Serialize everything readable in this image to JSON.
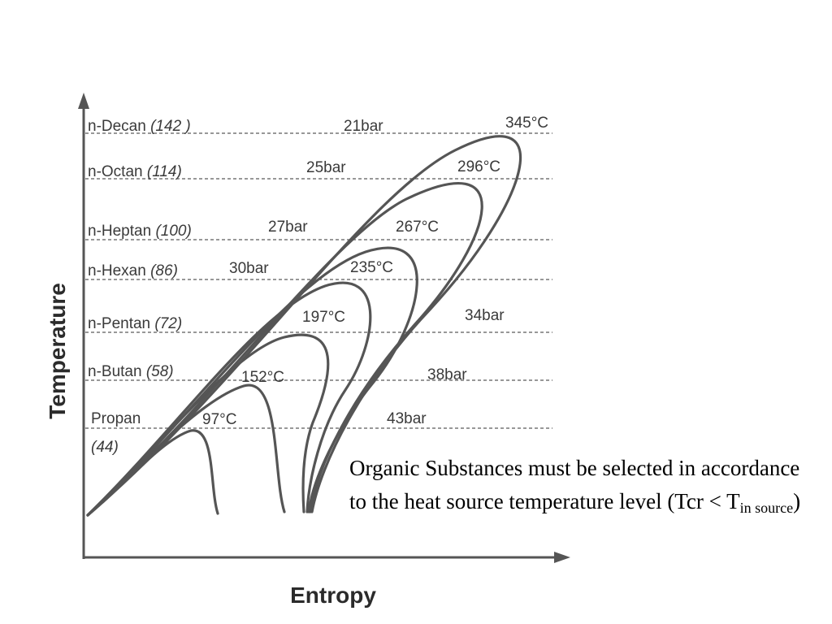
{
  "axes": {
    "y_title": "Temperature",
    "x_title": "Entropy"
  },
  "substances": [
    {
      "name": "n-Decan",
      "mol": "(142 )",
      "pressure": "21bar",
      "tcrit": "345°C"
    },
    {
      "name": "n-Octan",
      "mol": "(114)",
      "pressure": "25bar",
      "tcrit": "296°C"
    },
    {
      "name": "n-Heptan",
      "mol": "(100)",
      "pressure": "27bar",
      "tcrit": "267°C"
    },
    {
      "name": "n-Hexan",
      "mol": "(86)",
      "pressure": "30bar",
      "tcrit": "235°C"
    },
    {
      "name": "n-Pentan",
      "mol": "(72)",
      "pressure": "34bar",
      "tcrit": "197°C"
    },
    {
      "name": "n-Butan",
      "mol": "(58)",
      "pressure": "38bar",
      "tcrit": "152°C"
    },
    {
      "name": "Propan",
      "mol": "(44)",
      "pressure": "43bar",
      "tcrit": "97°C"
    }
  ],
  "note": {
    "text": "Organic Substances must be selected in accordance to the heat source temperature level (Tcr < T",
    "subscript": "in source",
    "closing": ")"
  }
}
